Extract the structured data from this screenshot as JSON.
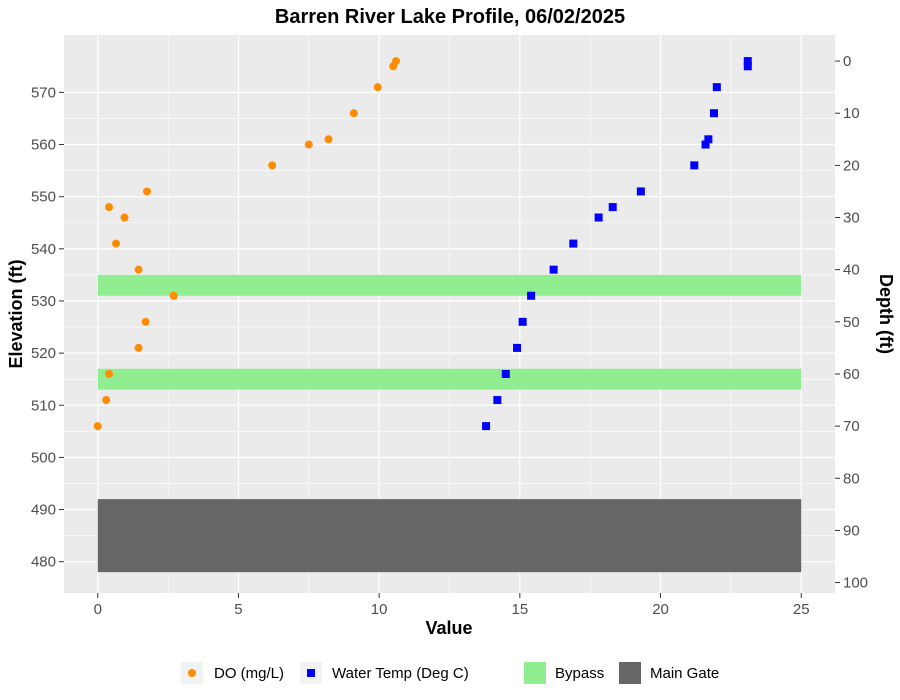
{
  "chart_data": {
    "type": "scatter",
    "title": "Barren River Lake Profile,  06/02/2025",
    "xlabel": "Value",
    "ylabel": "Elevation (ft)",
    "y2label": "Depth (ft)",
    "xlim": [
      -1.2,
      26.2
    ],
    "ylim": [
      474,
      581
    ],
    "x_ticks": [
      0,
      5,
      10,
      15,
      20,
      25
    ],
    "y_ticks": [
      480,
      490,
      500,
      510,
      520,
      530,
      540,
      550,
      560,
      570
    ],
    "y2_ticks": [
      0,
      10,
      20,
      30,
      40,
      50,
      60,
      70,
      80,
      90,
      100
    ],
    "grid": true,
    "legend_position": "bottom",
    "colors": {
      "panel": "#ebebeb",
      "grid": "#ffffff",
      "do": "#ff8c00",
      "temp": "#0000ff",
      "bypass": "#90ee90",
      "main_gate": "#666666"
    },
    "series": [
      {
        "name": "DO (mg/L)",
        "marker": "circle",
        "points": [
          {
            "x": 10.6,
            "y": 576
          },
          {
            "x": 10.5,
            "y": 575
          },
          {
            "x": 9.95,
            "y": 571
          },
          {
            "x": 9.1,
            "y": 566
          },
          {
            "x": 8.2,
            "y": 561
          },
          {
            "x": 7.5,
            "y": 560
          },
          {
            "x": 6.2,
            "y": 556
          },
          {
            "x": 1.75,
            "y": 551
          },
          {
            "x": 0.4,
            "y": 548
          },
          {
            "x": 0.95,
            "y": 546
          },
          {
            "x": 0.65,
            "y": 541
          },
          {
            "x": 1.45,
            "y": 536
          },
          {
            "x": 2.7,
            "y": 531
          },
          {
            "x": 1.7,
            "y": 526
          },
          {
            "x": 1.45,
            "y": 521
          },
          {
            "x": 0.4,
            "y": 516
          },
          {
            "x": 0.3,
            "y": 511
          },
          {
            "x": 0.0,
            "y": 506
          }
        ]
      },
      {
        "name": "Water Temp (Deg C)",
        "marker": "square",
        "points": [
          {
            "x": 23.1,
            "y": 576
          },
          {
            "x": 23.1,
            "y": 575
          },
          {
            "x": 22.0,
            "y": 571
          },
          {
            "x": 21.9,
            "y": 566
          },
          {
            "x": 21.7,
            "y": 561
          },
          {
            "x": 21.6,
            "y": 560
          },
          {
            "x": 21.2,
            "y": 556
          },
          {
            "x": 19.3,
            "y": 551
          },
          {
            "x": 18.3,
            "y": 548
          },
          {
            "x": 17.8,
            "y": 546
          },
          {
            "x": 16.9,
            "y": 541
          },
          {
            "x": 16.2,
            "y": 536
          },
          {
            "x": 15.4,
            "y": 531
          },
          {
            "x": 15.1,
            "y": 526
          },
          {
            "x": 14.9,
            "y": 521
          },
          {
            "x": 14.5,
            "y": 516
          },
          {
            "x": 14.2,
            "y": 511
          },
          {
            "x": 13.8,
            "y": 506
          }
        ]
      }
    ],
    "bands": [
      {
        "name": "Bypass",
        "x0": 0,
        "x1": 25,
        "y0": 531,
        "y1": 535
      },
      {
        "name": "Bypass",
        "x0": 0,
        "x1": 25,
        "y0": 513,
        "y1": 517
      },
      {
        "name": "Main Gate",
        "x0": 0,
        "x1": 25,
        "y0": 478,
        "y1": 492
      }
    ],
    "legend": [
      {
        "label": "DO (mg/L)",
        "kind": "circle",
        "color": "#ff8c00"
      },
      {
        "label": "Water Temp (Deg C)",
        "kind": "square",
        "color": "#0000ff"
      },
      {
        "label": "Bypass",
        "kind": "fill",
        "color": "#90ee90"
      },
      {
        "label": "Main Gate",
        "kind": "fill",
        "color": "#666666"
      }
    ]
  }
}
